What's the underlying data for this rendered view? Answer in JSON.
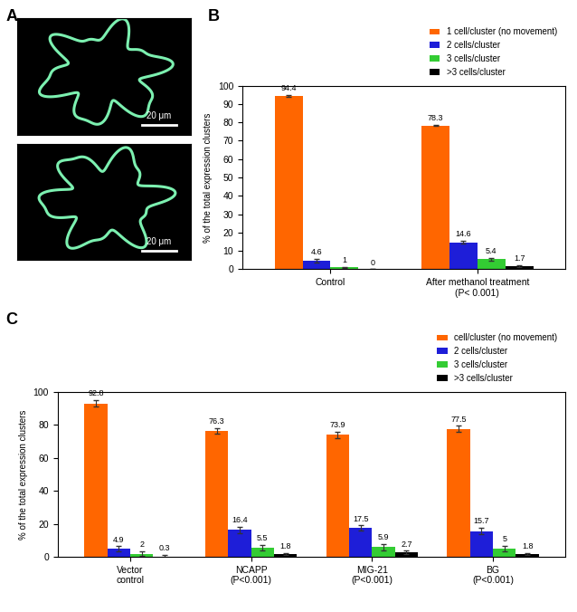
{
  "panel_labels": [
    "A",
    "B",
    "C"
  ],
  "images": [
    {
      "scale_bar": "20 μm"
    },
    {
      "scale_bar": "20 μm"
    }
  ],
  "chart_data": [
    {
      "type": "bar",
      "ylabel": "% of the total expression clusters",
      "categories": [
        "Control",
        "After methanol treatment\n(P< 0.001)"
      ],
      "series": [
        {
          "name": "1 cell/cluster (no movement)",
          "color": "#FF6600",
          "values": [
            94.4,
            78.3
          ],
          "errors": [
            0.6,
            0.3
          ]
        },
        {
          "name": "2 cells/cluster",
          "color": "#1E1ED8",
          "values": [
            4.6,
            14.6
          ],
          "errors": [
            1.0,
            0.8
          ]
        },
        {
          "name": "3 cells/cluster",
          "color": "#33CC33",
          "values": [
            1,
            5.4
          ],
          "errors": [
            0.3,
            0.6
          ]
        },
        {
          "name": ">3 cells/cluster",
          "color": "#000000",
          "values": [
            0,
            1.7
          ],
          "errors": [
            0,
            0.5
          ]
        }
      ],
      "ylim": [
        0,
        100
      ],
      "yticks": [
        0,
        10,
        20,
        30,
        40,
        50,
        60,
        70,
        80,
        90,
        100
      ],
      "data_labels": true,
      "legend": "upper right"
    },
    {
      "type": "bar",
      "ylabel": "% of the total expression clusters",
      "categories": [
        "Vector\ncontrol",
        "NCAPP\n(P<0.001)",
        "MIG-21\n(P<0.001)",
        "BG\n(P<0.001)"
      ],
      "series": [
        {
          "name": "cell/cluster (no movement)",
          "color": "#FF6600",
          "values": [
            92.8,
            76.3,
            73.9,
            77.5
          ],
          "errors": [
            2.0,
            1.8,
            1.8,
            1.8
          ]
        },
        {
          "name": "2 cells/cluster",
          "color": "#1E1ED8",
          "values": [
            4.9,
            16.4,
            17.5,
            15.7
          ],
          "errors": [
            1.5,
            1.8,
            1.5,
            1.8
          ]
        },
        {
          "name": "3 cells/cluster",
          "color": "#33CC33",
          "values": [
            2,
            5.5,
            5.9,
            5
          ],
          "errors": [
            1.5,
            1.8,
            2.0,
            1.8
          ]
        },
        {
          "name": ">3 cells/cluster",
          "color": "#000000",
          "values": [
            0.3,
            1.8,
            2.7,
            1.8
          ],
          "errors": [
            0.8,
            0.6,
            1.0,
            0.6
          ]
        }
      ],
      "ylim": [
        0,
        100
      ],
      "yticks": [
        0,
        20,
        40,
        60,
        80,
        100
      ],
      "data_labels": true,
      "legend": "upper right"
    }
  ]
}
